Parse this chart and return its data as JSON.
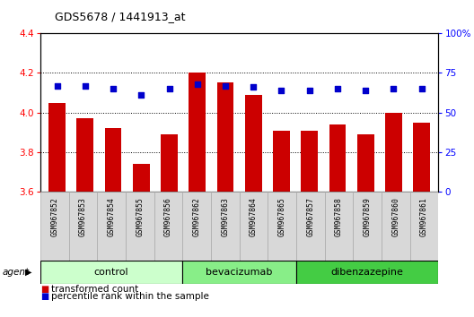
{
  "title": "GDS5678 / 1441913_at",
  "samples": [
    "GSM967852",
    "GSM967853",
    "GSM967854",
    "GSM967855",
    "GSM967856",
    "GSM967862",
    "GSM967863",
    "GSM967864",
    "GSM967865",
    "GSM967857",
    "GSM967858",
    "GSM967859",
    "GSM967860",
    "GSM967861"
  ],
  "bar_values": [
    4.05,
    3.97,
    3.92,
    3.74,
    3.89,
    4.2,
    4.15,
    4.09,
    3.91,
    3.91,
    3.94,
    3.89,
    4.0,
    3.95
  ],
  "percentile_values": [
    67,
    67,
    65,
    61,
    65,
    68,
    67,
    66,
    64,
    64,
    65,
    64,
    65,
    65
  ],
  "bar_color": "#cc0000",
  "dot_color": "#0000cc",
  "ylim": [
    3.6,
    4.4
  ],
  "y2lim": [
    0,
    100
  ],
  "yticks": [
    3.6,
    3.8,
    4.0,
    4.2,
    4.4
  ],
  "y2ticks": [
    0,
    25,
    50,
    75,
    100
  ],
  "y2ticklabels": [
    "0",
    "25",
    "50",
    "75",
    "100%"
  ],
  "groups": [
    {
      "name": "control",
      "start": 0,
      "end": 5,
      "color": "#ccffcc"
    },
    {
      "name": "bevacizumab",
      "start": 5,
      "end": 9,
      "color": "#88ee88"
    },
    {
      "name": "dibenzazepine",
      "start": 9,
      "end": 14,
      "color": "#44cc44"
    }
  ],
  "agent_label": "agent",
  "legend_bar_label": "transformed count",
  "legend_dot_label": "percentile rank within the sample",
  "sample_bg_color": "#d8d8d8",
  "bar_width": 0.6
}
